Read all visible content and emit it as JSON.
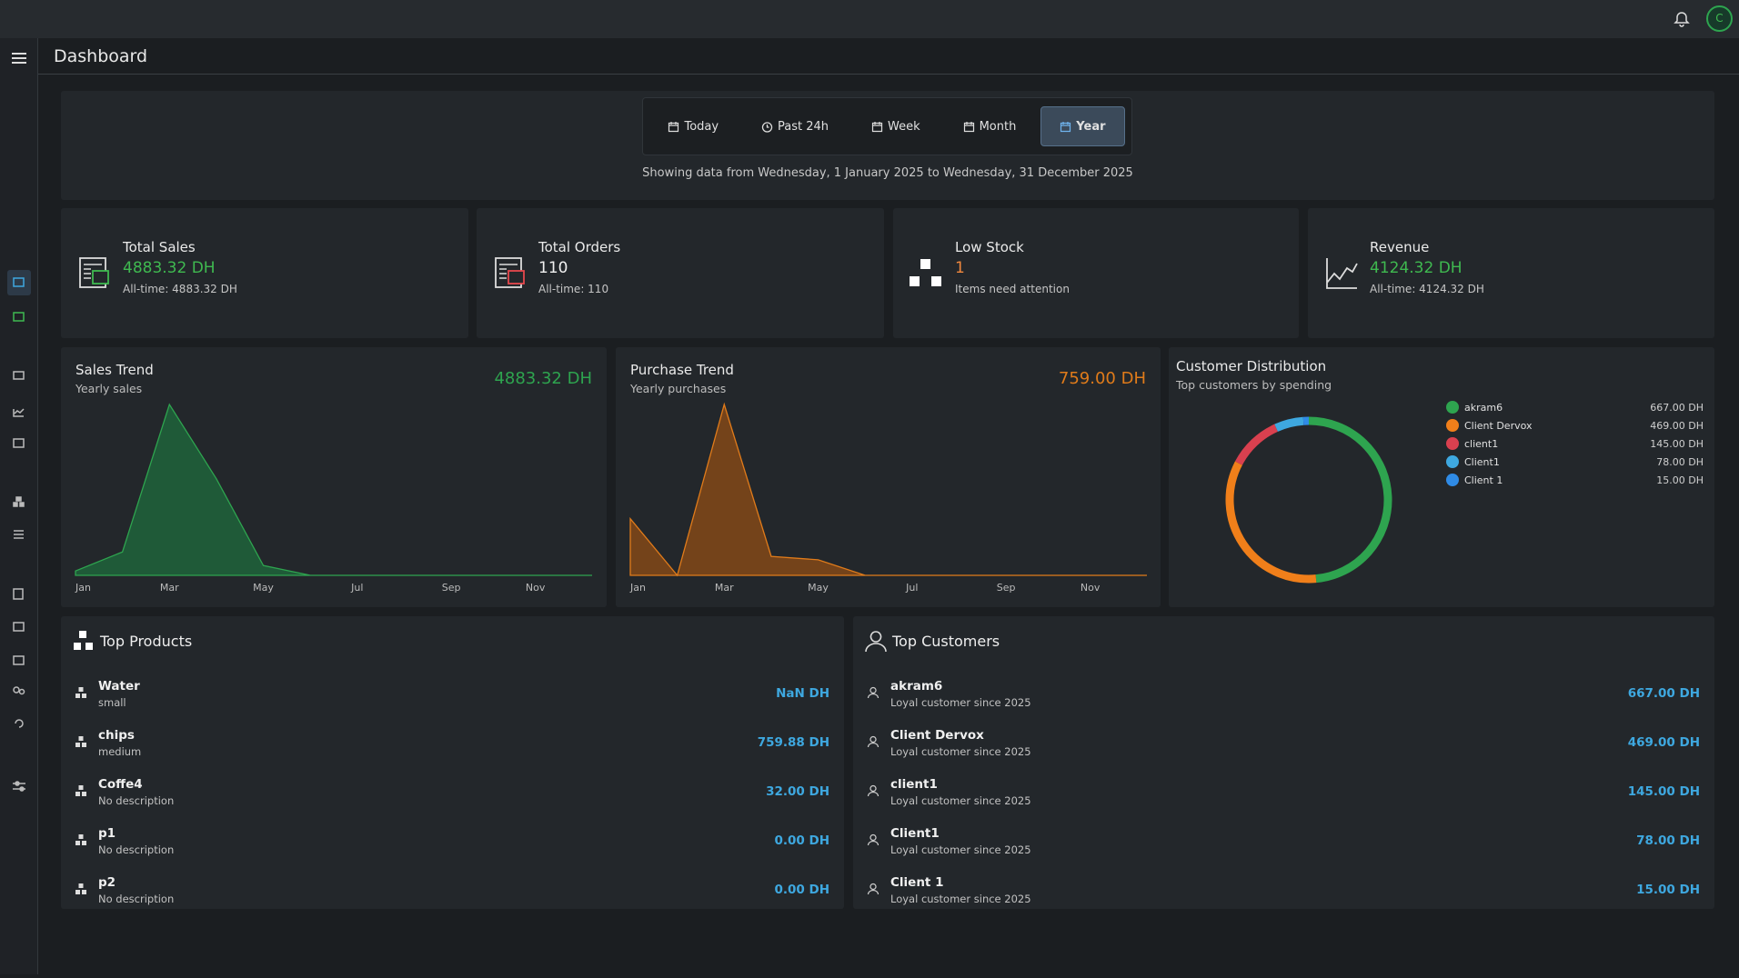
{
  "topbar": {
    "avatar": "C"
  },
  "header": {
    "title": "Dashboard"
  },
  "filters": {
    "options": [
      "Today",
      "Past 24h",
      "Week",
      "Month",
      "Year"
    ],
    "active": "Year",
    "range_text": "Showing data from Wednesday, 1 January 2025 to Wednesday, 31 December 2025"
  },
  "stats": [
    {
      "title": "Total Sales",
      "value": "4883.32 DH",
      "sub": "All-time: 4883.32 DH",
      "color": "#3fb950"
    },
    {
      "title": "Total Orders",
      "value": "110",
      "sub": "All-time: 110",
      "color": "#f0f0f0"
    },
    {
      "title": "Low Stock",
      "value": "1",
      "sub": "Items need attention",
      "color": "#f0883e"
    },
    {
      "title": "Revenue",
      "value": "4124.32 DH",
      "sub": "All-time: 4124.32 DH",
      "color": "#3fb950"
    }
  ],
  "sales_trend": {
    "type": "area",
    "title": "Sales Trend",
    "subtitle": "Yearly sales",
    "total": "4883.32 DH",
    "color": "#2ea44f",
    "fill": "#1f5a38",
    "categories": [
      "Jan",
      null,
      "Mar",
      null,
      "May",
      null,
      "Jul",
      null,
      "Sep",
      null,
      "Nov",
      null
    ],
    "values": [
      70,
      375,
      2735,
      1545,
      158,
      0,
      0,
      0,
      0,
      0,
      0,
      0
    ]
  },
  "purchase_trend": {
    "type": "area",
    "title": "Purchase Trend",
    "subtitle": "Yearly purchases",
    "total": "759.00 DH",
    "color": "#e07b1a",
    "fill": "#74431a",
    "categories": [
      "Jan",
      null,
      "Mar",
      null,
      "May",
      null,
      "Jul",
      null,
      "Sep",
      null,
      "Nov",
      null
    ],
    "values": [
      164,
      0,
      495,
      55,
      45,
      0,
      0,
      0,
      0,
      0,
      0,
      0
    ]
  },
  "customer_distribution": {
    "type": "donut",
    "title": "Customer Distribution",
    "subtitle": "Top customers by spending",
    "categories": [
      "akram6",
      "Client Dervox",
      "client1",
      "Client1",
      "Client 1"
    ],
    "values": [
      667,
      469,
      145,
      78,
      15
    ],
    "value_labels": [
      "667.00 DH",
      "469.00 DH",
      "145.00 DH",
      "78.00 DH",
      "15.00 DH"
    ],
    "colors": [
      "#2ea44f",
      "#f07f1a",
      "#d9404f",
      "#3ea8e0",
      "#2f8be6"
    ]
  },
  "top_products": {
    "title": "Top Products",
    "rows": [
      {
        "name": "Water",
        "desc": "small",
        "value": "NaN DH"
      },
      {
        "name": "chips",
        "desc": "medium",
        "value": "759.88 DH"
      },
      {
        "name": "Coffe4",
        "desc": "No description",
        "value": "32.00 DH"
      },
      {
        "name": "p1",
        "desc": "No description",
        "value": "0.00 DH"
      },
      {
        "name": "p2",
        "desc": "No description",
        "value": "0.00 DH"
      }
    ]
  },
  "top_customers": {
    "title": "Top Customers",
    "rows": [
      {
        "name": "akram6",
        "desc": "Loyal customer since 2025",
        "value": "667.00 DH"
      },
      {
        "name": "Client Dervox",
        "desc": "Loyal customer since 2025",
        "value": "469.00 DH"
      },
      {
        "name": "client1",
        "desc": "Loyal customer since 2025",
        "value": "145.00 DH"
      },
      {
        "name": "Client1",
        "desc": "Loyal customer since 2025",
        "value": "78.00 DH"
      },
      {
        "name": "Client 1",
        "desc": "Loyal customer since 2025",
        "value": "15.00 DH"
      }
    ]
  }
}
